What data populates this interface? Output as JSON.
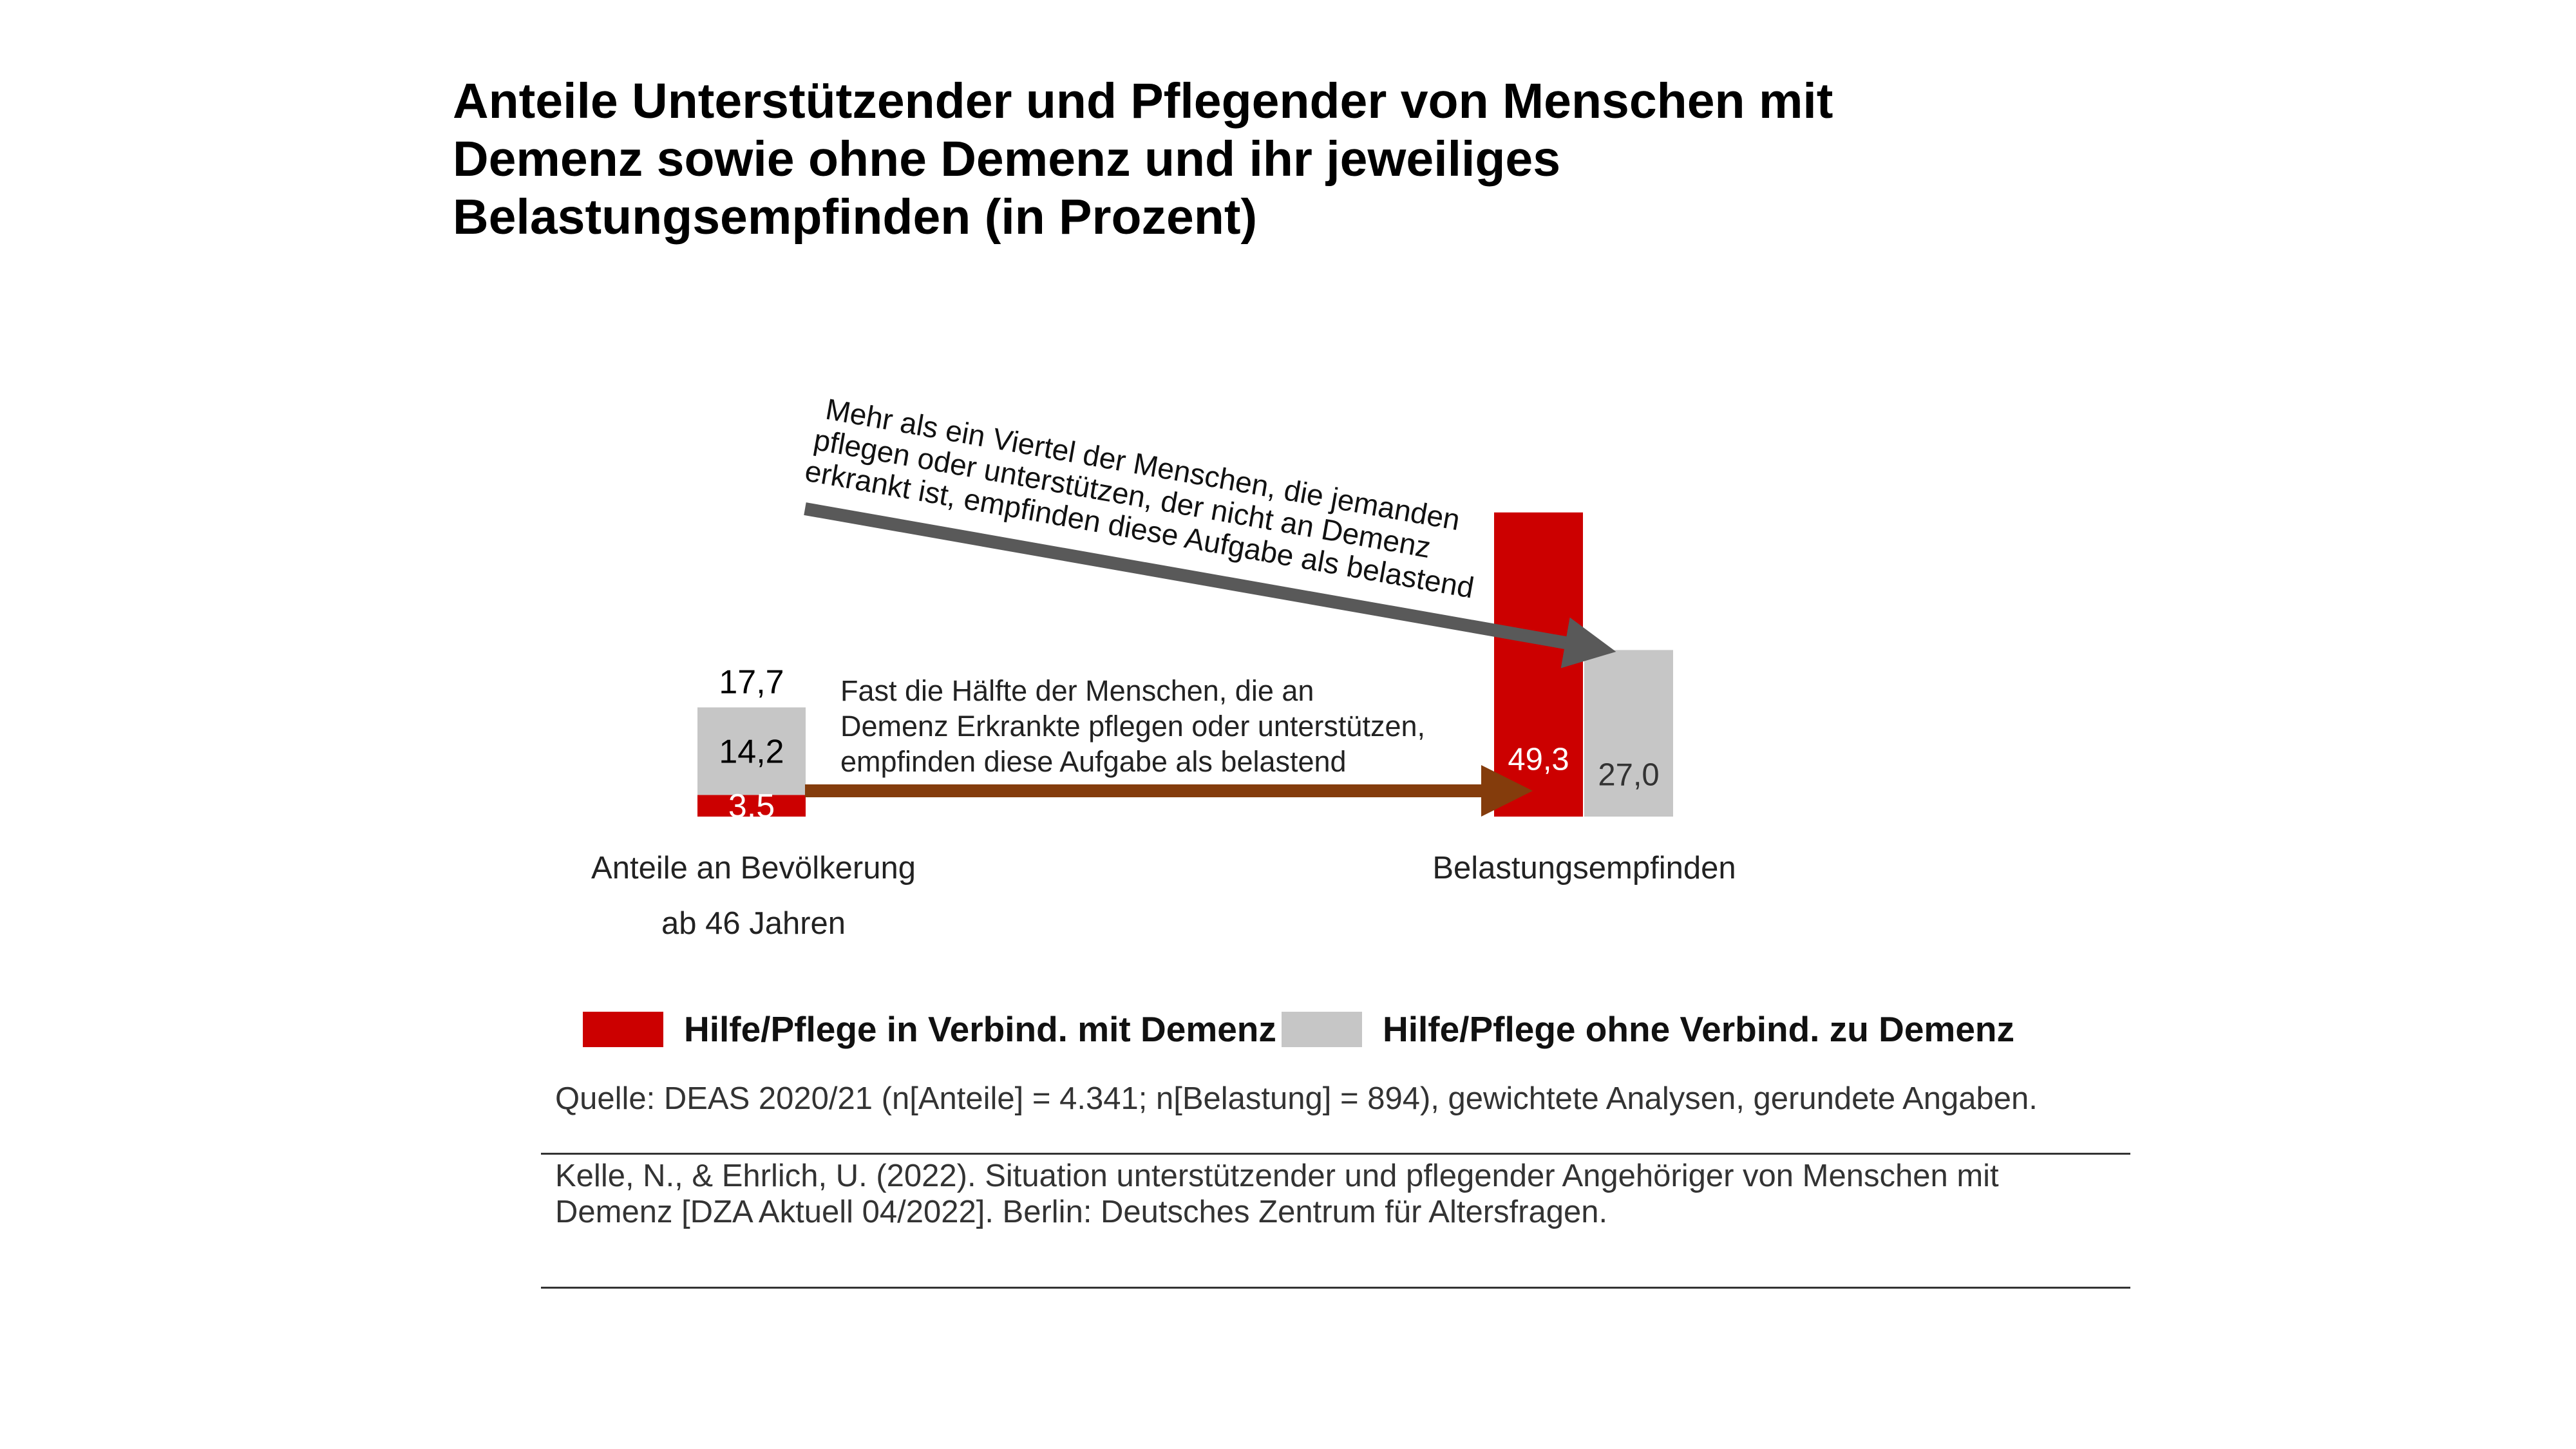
{
  "title_lines": [
    "Anteile Unterstützender und Pflegender von Menschen mit",
    "Demenz sowie ohne Demenz und ihr jeweiliges",
    "Belastungsempfinden (in Prozent)"
  ],
  "colors": {
    "red": "#cc0000",
    "gray": "#c6c6c6",
    "arrow_gray": "#595959",
    "arrow_brown": "#843c0c"
  },
  "chart_data": {
    "type": "bar",
    "stacked": true,
    "categories": [
      {
        "line1": "Anteile an Bevölkerung",
        "line2": "ab 46 Jahren"
      },
      {
        "line1": "Belastungsempfinden",
        "line2": ""
      }
    ],
    "series": [
      {
        "name": "Hilfe/Pflege in Verbind. mit Demenz",
        "color": "#cc0000",
        "values": [
          3.5,
          49.3
        ],
        "labels": [
          "3,5",
          "49,3"
        ]
      },
      {
        "name": "Hilfe/Pflege ohne Verbind. zu Demenz",
        "color": "#c6c6c6",
        "values": [
          14.2,
          27.0
        ],
        "labels": [
          "14,2",
          "27,0"
        ]
      }
    ],
    "totals": [
      {
        "value": 17.7,
        "label": "17,7"
      }
    ],
    "annotations": [
      {
        "lines": [
          "Mehr als ein Viertel der Menschen, die jemanden",
          "pflegen oder unterstützen, der nicht an Demenz",
          "erkrankt ist, empfinden diese Aufgabe als belastend"
        ],
        "arrow": "gray"
      },
      {
        "lines": [
          "Fast die Hälfte der Menschen, die an",
          "Demenz Erkrankte pflegen oder unterstützen,",
          "empfinden diese Aufgabe als belastend"
        ],
        "arrow": "brown"
      }
    ]
  },
  "source": "Quelle: DEAS 2020/21 (n[Anteile] = 4.341; n[Belastung] = 894), gewichtete Analysen, gerundete Angaben.",
  "citation_lines": [
    "Kelle, N., & Ehrlich, U. (2022). Situation unterstützender und pflegender Angehöriger von Menschen mit",
    "Demenz [DZA Aktuell 04/2022]. Berlin: Deutsches Zentrum für Altersfragen."
  ]
}
